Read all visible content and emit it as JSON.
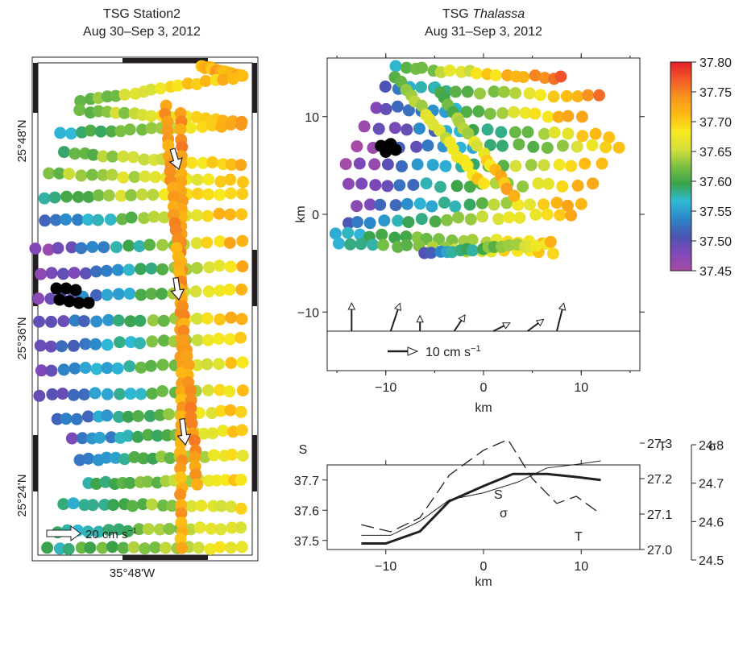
{
  "colors": {
    "colormap": [
      "#a64ca6",
      "#8048b8",
      "#4a55b3",
      "#2c86c9",
      "#2fb9d6",
      "#3aa34a",
      "#7bc043",
      "#d6e03a",
      "#f7e91e",
      "#fdb913",
      "#f7941d",
      "#f15a29",
      "#e51e25"
    ],
    "missing": "#000000",
    "axis": "#231f20"
  },
  "panel_a": {
    "title": "TSG Station2",
    "subtitle": "Aug 30–Sep 3, 2012",
    "lat_labels": [
      "25°48'N",
      "25°36'N",
      "25°24'N"
    ],
    "lon_label": "35°48'W",
    "scale_label": "20 cm s",
    "scale_exp": "−1"
  },
  "panel_b": {
    "title": "TSG ",
    "title_ital": "Thalassa",
    "subtitle": "Aug 31–Sep 3, 2012",
    "xlabel": "km",
    "ylabel": "km",
    "scale_label": "10 cm s",
    "scale_exp": "−1"
  },
  "panel_c": {
    "xlabel": "km",
    "left_axis_title": "S",
    "t_axis_title": "T",
    "sigma_axis_title": "σ",
    "label_S": "S",
    "label_sigma": "σ",
    "label_T": "T"
  },
  "chart_data": [
    {
      "type": "scatter",
      "panel": "station2_map",
      "title": "TSG Station2",
      "subtitle": "Aug 30–Sep 3, 2012",
      "ylim": [
        25.32,
        25.9
      ],
      "yticks": [
        25.8,
        25.6,
        25.4
      ],
      "yticklabels": [
        "25°48'N",
        "25°36'N",
        "25°24'N"
      ],
      "xticks": [
        35.8
      ],
      "xticklabels": [
        "35°48'W"
      ],
      "colorbar_range": [
        37.45,
        37.8
      ],
      "current_vectors_cm_s": [
        {
          "lat": 25.79,
          "speed": 13,
          "dir": "S"
        },
        {
          "lat": 25.655,
          "speed": 13,
          "dir": "S"
        },
        {
          "lat": 25.475,
          "speed": 17,
          "dir": "S"
        }
      ],
      "scale_vector_cm_s": 20
    },
    {
      "type": "scatter",
      "panel": "thalassa_xy",
      "title": "TSG Thalassa",
      "subtitle": "Aug 31–Sep 3, 2012",
      "xlabel": "km",
      "ylabel": "km",
      "xlim": [
        -16,
        16
      ],
      "ylim": [
        -16,
        16
      ],
      "xticks": [
        -10,
        0,
        10
      ],
      "yticks": [
        -10,
        0,
        10
      ],
      "colorbar": {
        "ticks": [
          37.8,
          37.75,
          37.7,
          37.65,
          37.6,
          37.55,
          37.5,
          37.45
        ],
        "ticklabels": [
          "37.80",
          "37.75",
          "37.70",
          "37.65",
          "37.60",
          "37.55",
          "37.50",
          "37.45"
        ],
        "range": [
          37.45,
          37.8
        ]
      },
      "current_vectors_cm_s": [
        {
          "x": -13.5,
          "u": 0,
          "v": 6
        },
        {
          "x": -9.5,
          "u": 2,
          "v": 6
        },
        {
          "x": -6.5,
          "u": 0,
          "v": 2.5
        },
        {
          "x": -3,
          "u": 2,
          "v": 3
        },
        {
          "x": 1,
          "u": 3,
          "v": 1.5
        },
        {
          "x": 4.5,
          "u": 3,
          "v": 2.2
        },
        {
          "x": 7.5,
          "u": 1.5,
          "v": 6
        }
      ],
      "scale_vector_cm_s": 10
    },
    {
      "type": "line",
      "panel": "profiles",
      "xlabel": "km",
      "xlim": [
        -16,
        16
      ],
      "xticks": [
        -10,
        0,
        10
      ],
      "y_left": {
        "title": "S",
        "ticks": [
          37.5,
          37.6,
          37.7
        ],
        "range": [
          37.47,
          37.75
        ]
      },
      "y_right_T": {
        "title": "T",
        "ticks": [
          27.0,
          27.1,
          27.2,
          27.3
        ],
        "range": [
          27.0,
          27.3
        ]
      },
      "y_right_sigma": {
        "title": "σ",
        "ticks": [
          24.5,
          24.6,
          24.7,
          24.8
        ],
        "range": [
          24.5,
          24.8
        ]
      },
      "series": [
        {
          "name": "S",
          "axis": "S",
          "style": "bold",
          "x": [
            -12.5,
            -10,
            -6.5,
            -3.5,
            0,
            3,
            6.5,
            9.5,
            12
          ],
          "y": [
            37.49,
            37.49,
            37.53,
            37.63,
            37.68,
            37.72,
            37.72,
            37.71,
            37.7
          ]
        },
        {
          "name": "σ",
          "axis": "T",
          "style": "thin",
          "x": [
            -12.5,
            -9.5,
            -6.5,
            -3.5,
            0,
            3.5,
            6.5,
            9.5,
            12
          ],
          "y": [
            27.04,
            27.04,
            27.08,
            27.14,
            27.16,
            27.19,
            27.23,
            27.24,
            27.25
          ]
        },
        {
          "name": "T",
          "axis": "T",
          "style": "dashed",
          "x": [
            -12.5,
            -9.5,
            -6.5,
            -3.5,
            0,
            2.5,
            5,
            7.5,
            9.5,
            12
          ],
          "y": [
            27.07,
            27.05,
            27.09,
            27.21,
            27.28,
            27.31,
            27.2,
            27.13,
            27.15,
            27.1
          ]
        }
      ]
    }
  ]
}
